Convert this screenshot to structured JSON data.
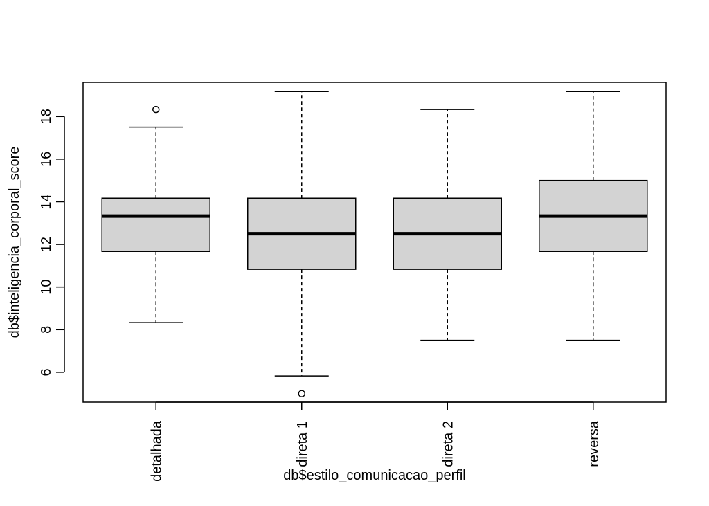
{
  "chart_data": {
    "type": "boxplot",
    "xlabel": "db$estilo_comunicacao_perfil",
    "ylabel": "db$inteligencia_corporal_score",
    "ylim": [
      4.6,
      19.6
    ],
    "yticks": [
      6,
      8,
      10,
      12,
      14,
      16,
      18
    ],
    "grid": false,
    "box_fill": "#d3d3d3",
    "stroke": "#000000",
    "categories": [
      "detalhada",
      "direta 1",
      "direta 2",
      "reversa"
    ],
    "boxes": [
      {
        "category": "detalhada",
        "lower_whisker": 8.33,
        "q1": 11.67,
        "median": 13.33,
        "q3": 14.17,
        "upper_whisker": 17.5,
        "outliers": [
          18.33
        ]
      },
      {
        "category": "direta 1",
        "lower_whisker": 5.83,
        "q1": 10.83,
        "median": 12.5,
        "q3": 14.17,
        "upper_whisker": 19.17,
        "outliers": [
          5.0
        ]
      },
      {
        "category": "direta 2",
        "lower_whisker": 7.5,
        "q1": 10.83,
        "median": 12.5,
        "q3": 14.17,
        "upper_whisker": 18.33,
        "outliers": []
      },
      {
        "category": "reversa",
        "lower_whisker": 7.5,
        "q1": 11.67,
        "median": 13.33,
        "q3": 15.0,
        "upper_whisker": 19.17,
        "outliers": []
      }
    ]
  }
}
